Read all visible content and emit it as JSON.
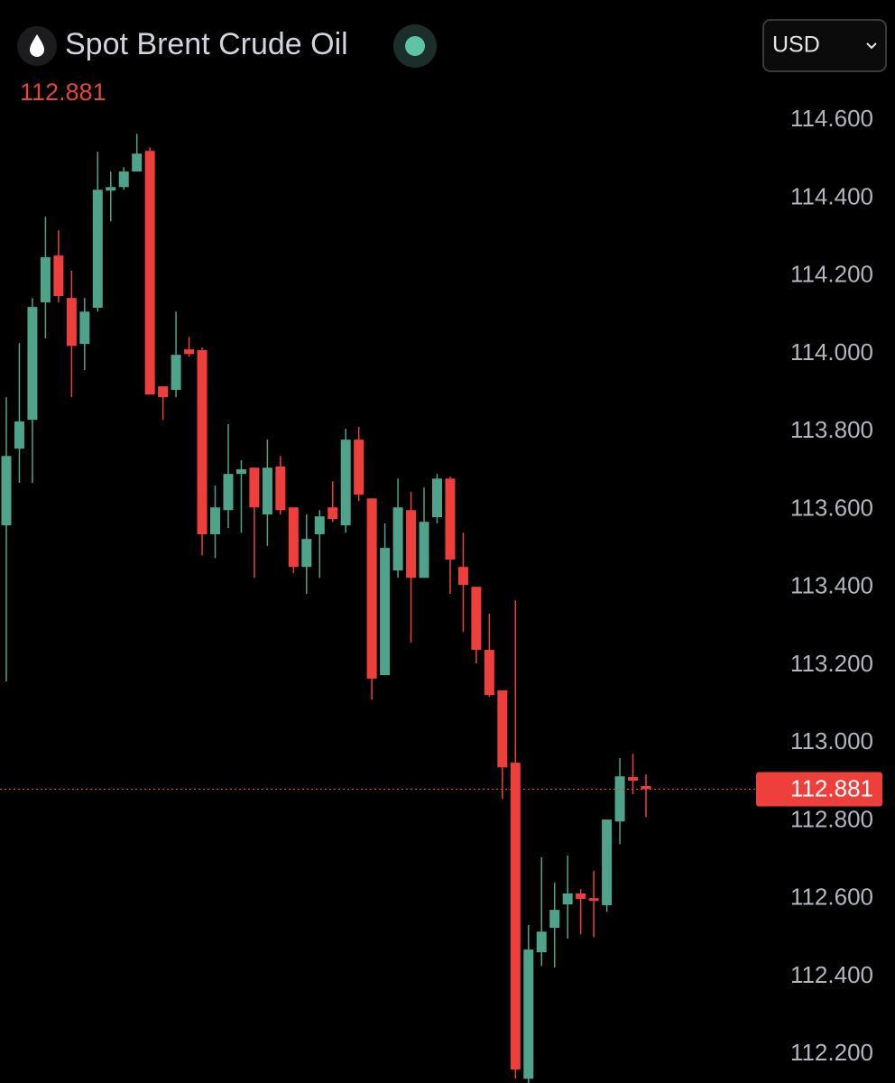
{
  "chart_data": {
    "type": "candlestick",
    "title": "Spot Brent Crude Oil",
    "currency": "USD",
    "last_price": 112.881,
    "up_color": "#4fa38a",
    "down_color": "#ee3f3c",
    "open": [
      113.559,
      113.756,
      113.83,
      114.132,
      114.252,
      114.143,
      114.025,
      114.118,
      114.419,
      114.428,
      114.468,
      114.521,
      113.916,
      113.907,
      114.011,
      114.009,
      113.536,
      113.598,
      113.691,
      113.707,
      113.587,
      113.71,
      113.605,
      113.452,
      113.536,
      113.605,
      113.559,
      113.779,
      113.628,
      113.174,
      113.443,
      113.598,
      113.424,
      113.58,
      113.679,
      113.452,
      113.401,
      113.239,
      113.135,
      112.949,
      112.137,
      112.462,
      112.525,
      112.585,
      112.613,
      112.601,
      112.583,
      112.798,
      112.912,
      112.889
    ],
    "high": [
      113.888,
      114.027,
      114.143,
      114.352,
      114.317,
      114.213,
      114.143,
      114.519,
      114.468,
      114.479,
      114.565,
      114.53,
      113.916,
      114.108,
      114.043,
      114.016,
      113.661,
      113.819,
      113.726,
      113.707,
      113.779,
      113.737,
      113.605,
      113.587,
      113.598,
      113.672,
      113.807,
      113.812,
      113.628,
      113.564,
      113.679,
      113.645,
      113.656,
      113.691,
      113.684,
      113.54,
      113.401,
      113.332,
      113.135,
      113.366,
      112.532,
      112.706,
      112.641,
      112.71,
      112.624,
      112.671,
      112.803,
      112.961,
      112.972,
      112.919
    ],
    "low": [
      113.158,
      113.668,
      113.668,
      114.039,
      114.132,
      113.888,
      113.958,
      114.108,
      114.34,
      114.421,
      114.468,
      113.895,
      113.83,
      113.888,
      113.992,
      113.482,
      113.475,
      113.552,
      113.54,
      113.424,
      113.506,
      113.587,
      113.436,
      113.383,
      113.424,
      113.568,
      113.54,
      113.621,
      113.111,
      113.174,
      113.424,
      113.257,
      113.424,
      113.564,
      113.383,
      113.285,
      113.204,
      113.118,
      112.856,
      112.137,
      112.126,
      112.427,
      112.423,
      112.497,
      112.508,
      112.501,
      112.566,
      112.74,
      112.868,
      112.81
    ],
    "close": [
      113.737,
      113.826,
      114.12,
      114.248,
      114.148,
      114.02,
      114.108,
      114.421,
      114.428,
      114.468,
      114.514,
      113.895,
      113.888,
      113.997,
      113.999,
      113.536,
      113.605,
      113.691,
      113.703,
      113.605,
      113.707,
      113.598,
      113.452,
      113.524,
      113.582,
      113.575,
      113.779,
      113.638,
      113.165,
      113.501,
      113.605,
      113.424,
      113.568,
      113.679,
      113.471,
      113.406,
      113.239,
      113.123,
      112.937,
      112.161,
      112.469,
      112.515,
      112.571,
      112.613,
      112.599,
      112.594,
      112.803,
      112.914,
      112.903,
      112.881
    ],
    "ylim": [
      112.13,
      114.7
    ],
    "yticks": [
      {
        "value": 114.6,
        "label": "114.600"
      },
      {
        "value": 114.4,
        "label": "114.400"
      },
      {
        "value": 114.2,
        "label": "114.200"
      },
      {
        "value": 114.0,
        "label": "114.000"
      },
      {
        "value": 113.8,
        "label": "113.800"
      },
      {
        "value": 113.6,
        "label": "113.600"
      },
      {
        "value": 113.4,
        "label": "113.400"
      },
      {
        "value": 113.2,
        "label": "113.200"
      },
      {
        "value": 113.0,
        "label": "113.000"
      },
      {
        "value": 112.8,
        "label": "112.800"
      },
      {
        "value": 112.6,
        "label": "112.600"
      },
      {
        "value": 112.4,
        "label": "112.400"
      },
      {
        "value": 112.2,
        "label": "112.200"
      }
    ]
  }
}
